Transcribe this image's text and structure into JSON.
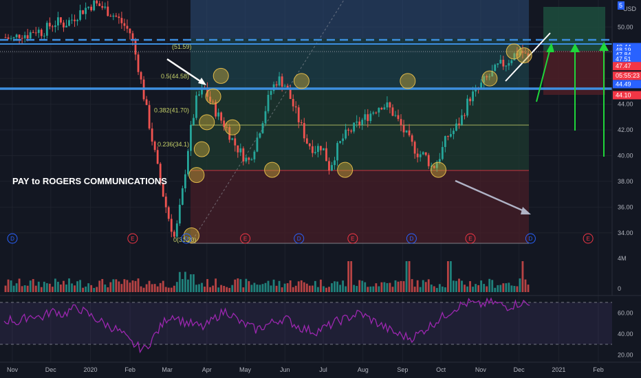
{
  "chart_data": {
    "type": "candlestick",
    "title": "PAY to ROGERS COMMUNICATIONS",
    "currency": "USD",
    "x_ticks": [
      "Nov",
      "Dec",
      "2020",
      "Feb",
      "Mar",
      "Apr",
      "May",
      "Jun",
      "Jul",
      "Aug",
      "Sep",
      "Oct",
      "Nov",
      "Dec",
      "2021",
      "Feb"
    ],
    "price_ticks": [
      50.0,
      48.0,
      46.0,
      44.0,
      42.0,
      40.0,
      38.0,
      36.0,
      34.0
    ],
    "price_tick_labels": [
      "50.00",
      "48.00",
      "46.00",
      "44.00",
      "42.00",
      "40.00",
      "38.00",
      "36.00",
      "34.00"
    ],
    "price_range": [
      32.6,
      52.1
    ],
    "price_badges": [
      {
        "value": 48.44,
        "label": "48.44",
        "color": "#2962ff"
      },
      {
        "value": 48.19,
        "label": "48.19",
        "color": "#2962ff"
      },
      {
        "value": 47.84,
        "label": "47.84",
        "color": "#2962ff"
      },
      {
        "value": 47.51,
        "label": "47.51",
        "color": "#2962ff"
      },
      {
        "value": 46.96,
        "label": "47.47",
        "color": "#f23645"
      },
      {
        "value": 46.21,
        "label": "05:55:23",
        "color": "#f23645"
      },
      {
        "value": 45.56,
        "label": "44.49",
        "color": "#2962ff"
      },
      {
        "value": 44.7,
        "label": "44.10",
        "color": "#f23645"
      }
    ],
    "price_closes": [
      49.2,
      49.0,
      49.5,
      49.4,
      49.8,
      49.6,
      50.1,
      50.4,
      50.2,
      50.6,
      51.1,
      51.5,
      51.8,
      51.6,
      51.2,
      50.8,
      50.2,
      49.5,
      47.0,
      44.0,
      41.0,
      38.0,
      35.5,
      33.5,
      37.0,
      41.5,
      44.5,
      45.2,
      44.0,
      43.0,
      42.2,
      41.0,
      40.2,
      39.5,
      41.0,
      43.0,
      45.0,
      46.0,
      45.5,
      44.0,
      42.5,
      41.0,
      40.5,
      40.8,
      39.0,
      40.5,
      41.5,
      42.0,
      42.5,
      43.0,
      43.5,
      44.0,
      43.8,
      43.0,
      42.0,
      41.0,
      40.2,
      40.0,
      39.0,
      40.0,
      41.5,
      42.0,
      43.0,
      44.5,
      45.0,
      45.8,
      46.3,
      47.0,
      47.2,
      47.8,
      48.2,
      47.5
    ],
    "fib_labels": [
      {
        "label": "0.5(44.58)",
        "value": 46.16
      },
      {
        "label": "0.382(41.70)",
        "value": 43.52
      },
      {
        "label": "0.236(34.1)",
        "value": 40.87
      }
    ],
    "fib_top_label": "(51.59)",
    "fib_bottom_label": "0(31.20)",
    "events": [
      {
        "letter": "D",
        "color": "#2962ff",
        "date": "2020-03-16"
      },
      {
        "letter": "E",
        "color": "#f23645",
        "date": "2020-05-01"
      },
      {
        "letter": "D",
        "color": "#2962ff",
        "date": "2020-06-12"
      },
      {
        "letter": "E",
        "color": "#f23645",
        "date": "2020-07-24"
      },
      {
        "letter": "D",
        "color": "#2962ff",
        "date": "2020-09-08"
      },
      {
        "letter": "E",
        "color": "#f23645",
        "date": "2020-10-24"
      },
      {
        "letter": "D",
        "color": "#2962ff",
        "date": "2020-12-10"
      },
      {
        "letter": "E",
        "color": "#f23645",
        "date": "2021-01-24"
      },
      {
        "letter": "D",
        "color": "#2962ff",
        "date": "2019-11-01"
      },
      {
        "letter": "E",
        "color": "#f23645",
        "date": "2020-02-03"
      }
    ],
    "volume_ticks": [
      4000000,
      0
    ],
    "volume_tick_labels": [
      "4M",
      "0"
    ],
    "rsi_ticks": [
      60,
      40,
      20
    ],
    "rsi_tick_labels": [
      "60.00",
      "40.00",
      "20.00"
    ],
    "rsi_bands": [
      70,
      30
    ],
    "rsi_values": [
      52,
      54,
      50,
      56,
      58,
      55,
      60,
      62,
      58,
      63,
      65,
      60,
      56,
      52,
      48,
      45,
      40,
      32,
      28,
      25,
      35,
      45,
      55,
      58,
      52,
      50,
      48,
      46,
      52,
      58,
      62,
      57,
      50,
      48,
      44,
      47,
      50,
      53,
      55,
      50,
      46,
      44,
      42,
      45,
      48,
      52,
      54,
      57,
      60,
      56,
      52,
      48,
      44,
      40,
      38,
      36,
      40,
      45,
      50,
      55,
      60,
      65,
      68,
      70,
      67,
      69,
      70,
      68,
      66,
      68,
      70,
      67
    ]
  },
  "icons": {
    "corner_badge": "5"
  }
}
